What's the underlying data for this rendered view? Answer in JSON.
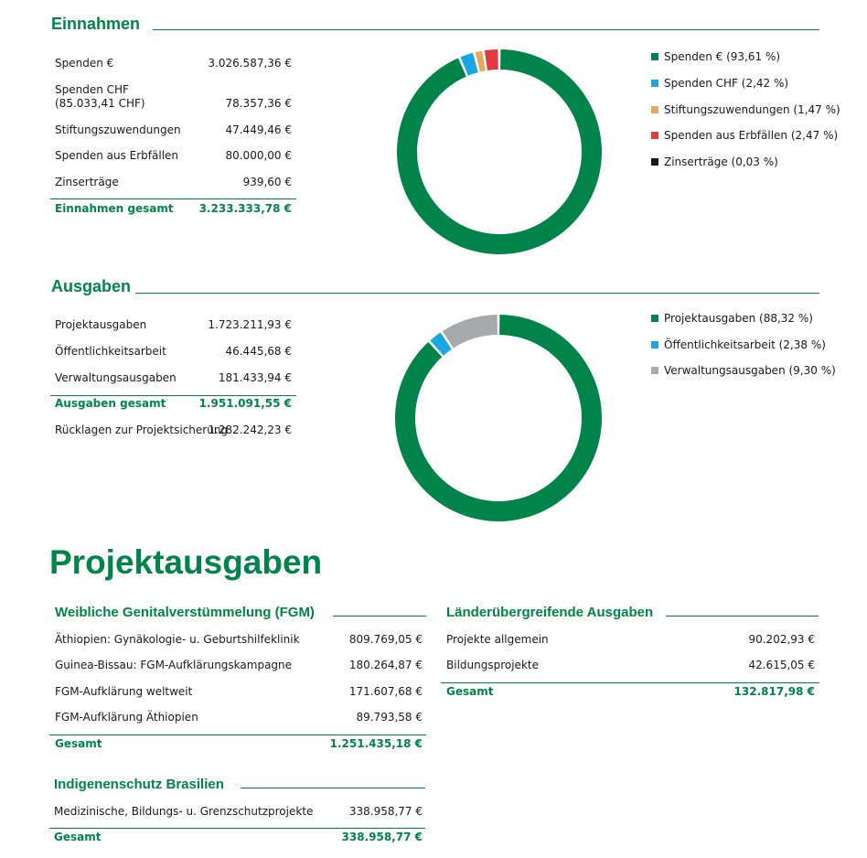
{
  "income": {
    "title": "Einnahmen",
    "rows": [
      {
        "label": "Spenden €",
        "value": "3.026.587,36 €"
      },
      {
        "label": "Spenden CHF",
        "label2": "(85.033,41 CHF)",
        "value": "78.357,36 €"
      },
      {
        "label": "Stiftungszuwendungen",
        "value": "47.449,46 €"
      },
      {
        "label": "Spenden aus Erbfällen",
        "value": "80.000,00 €"
      },
      {
        "label": "Zinserträge",
        "value": "939,60 €"
      }
    ],
    "total": {
      "label": "Einnahmen gesamt",
      "value": "3.233.333,78 €"
    },
    "legend": [
      {
        "label": "Spenden € (93,61 %)",
        "color": "#00844a"
      },
      {
        "label": "Spenden CHF (2,42 %)",
        "color": "#1aa7e1"
      },
      {
        "label": "Stiftungszuwendungen (1,47 %)",
        "color": "#e8a95b"
      },
      {
        "label": "Spenden aus Erbfällen (2,47 %)",
        "color": "#e03a3e"
      },
      {
        "label": "Zinserträge (0,03 %)",
        "color": "#1a1a1a"
      }
    ]
  },
  "expenses": {
    "title": "Ausgaben",
    "rows": [
      {
        "label": "Projektausgaben",
        "value": "1.723.211,93 €"
      },
      {
        "label": "Öffentlichkeitsarbeit",
        "value": "46.445,68 €"
      },
      {
        "label": "Verwaltungsausgaben",
        "value": "181.433,94 €"
      }
    ],
    "total": {
      "label": "Ausgaben gesamt",
      "value": "1.951.091,55 €"
    },
    "extra": {
      "label": "Rücklagen zur Projektsicherung",
      "value": "1.282.242,23 €"
    },
    "legend": [
      {
        "label": "Projektausgaben (88,32 %)",
        "color": "#00844a"
      },
      {
        "label": "Öffentlichkeitsarbeit (2,38 %)",
        "color": "#1aa7e1"
      },
      {
        "label": "Verwaltungsausgaben (9,30 %)",
        "color": "#a8a9ab"
      }
    ]
  },
  "projects": {
    "title": "Projektausgaben",
    "fgm": {
      "title": "Weibliche Genitalverstümmelung (FGM)",
      "rows": [
        {
          "label": "Äthiopien: Gynäkologie- u. Geburtshilfeklinik",
          "value": "809.769,05 €"
        },
        {
          "label": "Guinea-Bissau: FGM-Aufklärungskampagne",
          "value": "180.264,87 €"
        },
        {
          "label": "FGM-Aufklärung weltweit",
          "value": "171.607,68 €"
        },
        {
          "label": "FGM-Aufklärung Äthiopien",
          "value": "89.793,58 €"
        }
      ],
      "total": {
        "label": "Gesamt",
        "value": "1.251.435,18 €"
      }
    },
    "cross": {
      "title": "Länderübergreifende Ausgaben",
      "rows": [
        {
          "label": "Projekte allgemein",
          "value": "90.202,93 €"
        },
        {
          "label": "Bildungsprojekte",
          "value": "42.615,05 €"
        }
      ],
      "total": {
        "label": "Gesamt",
        "value": "132.817,98 €"
      }
    },
    "indigenous": {
      "title": "Indigenenschutz Brasilien",
      "rows": [
        {
          "label": "Medizinische, Bildungs- u. Grenzschutzprojekte",
          "value": "338.958,77 €"
        }
      ],
      "total": {
        "label": "Gesamt",
        "value": "338.958,77 €"
      }
    }
  },
  "chart_data": [
    {
      "type": "pie",
      "categories": [
        "Spenden €",
        "Spenden CHF",
        "Stiftungszuwendungen",
        "Spenden aus Erbfällen",
        "Zinserträge"
      ],
      "values": [
        93.61,
        2.42,
        1.47,
        2.47,
        0.03
      ],
      "colors": [
        "#00844a",
        "#1aa7e1",
        "#e8a95b",
        "#e03a3e",
        "#1a1a1a"
      ],
      "legend": "right"
    },
    {
      "type": "pie",
      "categories": [
        "Projektausgaben",
        "Öffentlichkeitsarbeit",
        "Verwaltungsausgaben"
      ],
      "values": [
        88.32,
        2.38,
        9.3
      ],
      "colors": [
        "#00844a",
        "#1aa7e1",
        "#a8a9ab"
      ],
      "legend": "right"
    }
  ]
}
